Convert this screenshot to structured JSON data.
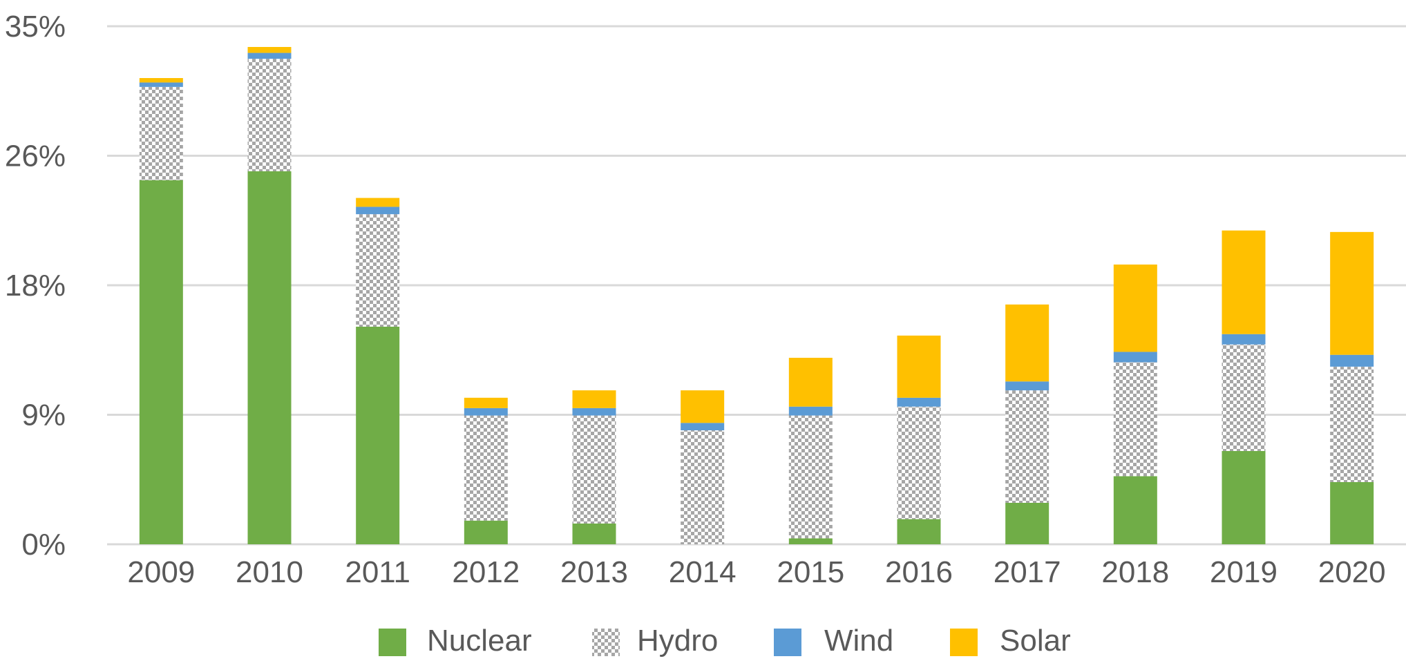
{
  "chart_data": {
    "type": "bar",
    "stacked": true,
    "categories": [
      "2009",
      "2010",
      "2011",
      "2012",
      "2013",
      "2014",
      "2015",
      "2016",
      "2017",
      "2018",
      "2019",
      "2020"
    ],
    "series": [
      {
        "name": "Nuclear",
        "color": "#70AD47",
        "pattern": "solid",
        "values": [
          24.6,
          25.2,
          14.7,
          1.6,
          1.4,
          0.0,
          0.4,
          1.7,
          2.8,
          4.6,
          6.3,
          4.2
        ]
      },
      {
        "name": "Hydro",
        "color": "#C8C8C8",
        "pattern": "checkerboard",
        "values": [
          6.3,
          7.6,
          7.6,
          7.1,
          7.3,
          7.7,
          8.3,
          7.6,
          7.6,
          7.7,
          7.2,
          7.8
        ]
      },
      {
        "name": "Wind",
        "color": "#5B9BD5",
        "pattern": "solid",
        "values": [
          0.3,
          0.4,
          0.5,
          0.5,
          0.5,
          0.5,
          0.6,
          0.6,
          0.6,
          0.7,
          0.7,
          0.8
        ]
      },
      {
        "name": "Solar",
        "color": "#FFC000",
        "pattern": "solid",
        "values": [
          0.3,
          0.4,
          0.6,
          0.7,
          1.2,
          2.2,
          3.3,
          4.2,
          5.2,
          5.9,
          7.0,
          8.3
        ]
      }
    ],
    "yticks": [
      "0%",
      "9%",
      "18%",
      "26%",
      "35%"
    ],
    "ylim": [
      0,
      35
    ],
    "title": "",
    "xlabel": "",
    "ylabel": "",
    "grid": true,
    "legend_position": "bottom"
  }
}
